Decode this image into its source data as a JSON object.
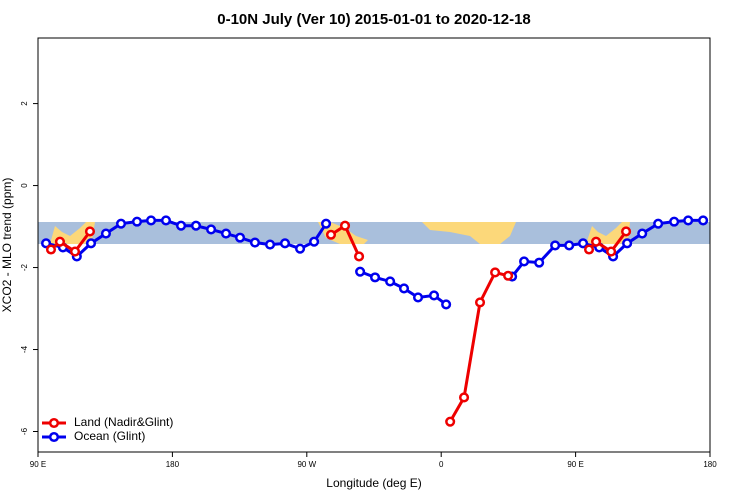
{
  "chart_data": {
    "type": "line",
    "title": "0-10N July (Ver 10)   2015-01-01 to 2020-12-18",
    "x_label": "Longitude (deg E)",
    "y_label": "XCO2 - MLO trend (ppm)",
    "xlim": [
      90,
      540
    ],
    "ylim": [
      -6.5,
      3.6
    ],
    "xticks": [
      {
        "value": 90,
        "label": "90 E"
      },
      180,
      {
        "value": 270,
        "label": "90 W"
      },
      {
        "value": 360,
        "label": "0"
      },
      {
        "value": 450,
        "label": "90 E"
      },
      {
        "value": 540,
        "label": "180"
      }
    ],
    "yticks": [
      -6,
      -4,
      -2,
      0,
      2
    ],
    "legend": "bottom-left",
    "series": [
      {
        "name": "Ocean (Glint)",
        "color": "#0000ee",
        "x": [
          95.4,
          106.7,
          116,
          125.5,
          135.5,
          145.6,
          156.3,
          165.7,
          175.7,
          185.8,
          195.8,
          205.9,
          215.9,
          225.3,
          235.3,
          245.4,
          255.4,
          265.5,
          274.9,
          282.9,
          null,
          305.7,
          315.7,
          325.8,
          335.1,
          344.5,
          355.2,
          363.3,
          null,
          407.5,
          415.5,
          425.6,
          436.3,
          445.7,
          455,
          465.8,
          475.1,
          484.5,
          494.6,
          505.3,
          516,
          525.4,
          535.4
        ],
        "values": [
          -1.41,
          -1.51,
          -1.73,
          -1.41,
          -1.17,
          -0.93,
          -0.88,
          -0.85,
          -0.85,
          -0.98,
          -0.98,
          -1.07,
          -1.17,
          -1.27,
          -1.39,
          -1.44,
          -1.41,
          -1.54,
          -1.37,
          -0.93,
          null,
          -2.1,
          -2.24,
          -2.34,
          -2.51,
          -2.73,
          -2.68,
          -2.9,
          null,
          -2.22,
          -1.85,
          -1.88,
          -1.46,
          -1.46,
          -1.41,
          -1.51,
          -1.73,
          -1.41,
          -1.17,
          -0.93,
          -0.88,
          -0.85,
          -0.85
        ]
      },
      {
        "name": "Land (Nadir&Glint)",
        "color": "#ee0000",
        "x": [
          98.7,
          104.7,
          114.8,
          124.8,
          null,
          286.2,
          295.6,
          305,
          null,
          366,
          375.3,
          386,
          396.1,
          404.8,
          null,
          459,
          463.7,
          473.8,
          483.8
        ],
        "values": [
          -1.56,
          -1.37,
          -1.61,
          -1.12,
          null,
          -1.2,
          -0.98,
          -1.73,
          null,
          -5.76,
          -5.17,
          -2.85,
          -2.12,
          -2.2,
          null,
          -1.56,
          -1.37,
          -1.61,
          -1.12
        ]
      }
    ]
  }
}
